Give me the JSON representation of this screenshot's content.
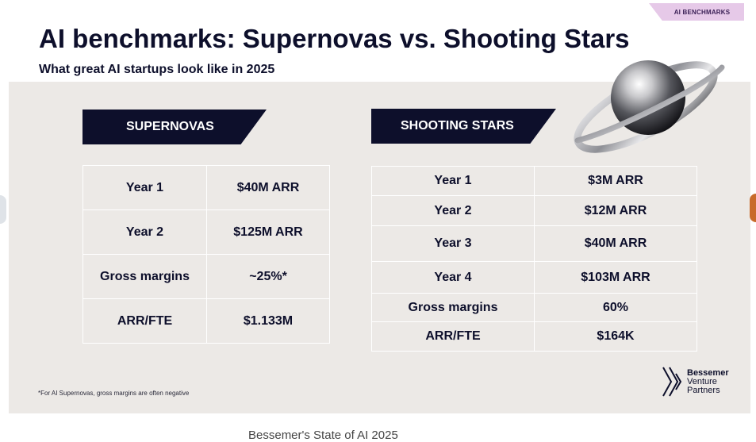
{
  "tag": "AI BENCHMARKS",
  "title": "AI benchmarks: Supernovas vs. Shooting Stars",
  "subtitle": "What great AI startups look like in 2025",
  "supernovas": {
    "label": "SUPERNOVAS",
    "rows": [
      {
        "metric": "Year 1",
        "value": "$40M ARR"
      },
      {
        "metric": "Year 2",
        "value": "$125M ARR"
      },
      {
        "metric": "Gross margins",
        "value": "~25%*"
      },
      {
        "metric": "ARR/FTE",
        "value": "$1.133M"
      }
    ]
  },
  "shooting_stars": {
    "label": "SHOOTING STARS",
    "rows": [
      {
        "metric": "Year 1",
        "value": "$3M ARR"
      },
      {
        "metric": "Year 2",
        "value": "$12M ARR"
      },
      {
        "metric": "Year 3",
        "value": "$40M ARR"
      },
      {
        "metric": "Year 4",
        "value": "$103M ARR"
      },
      {
        "metric": "Gross margins",
        "value": "60%"
      },
      {
        "metric": "ARR/FTE",
        "value": "$164K"
      }
    ]
  },
  "footnote": "*For AI Supernovas, gross margins are often negative",
  "logo": {
    "line1": "Bessemer",
    "line2": "Venture",
    "line3": "Partners"
  },
  "caption": "Bessemer's State of AI 2025",
  "colors": {
    "navy": "#0d0f2b",
    "panel": "#ece9e6",
    "tag": "#e6c9e8"
  }
}
